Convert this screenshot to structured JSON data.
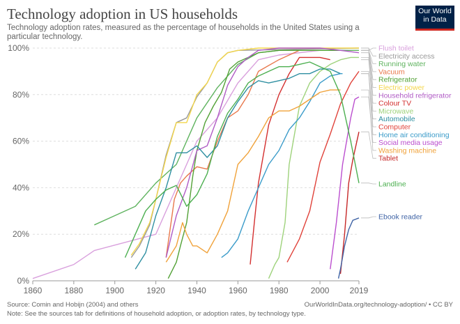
{
  "header": {
    "title": "Technology adoption in US households",
    "subtitle": "Technology adoption rates, measured as the percentage of households in the United States using a particular technology.",
    "logo_line1": "Our World",
    "logo_line2": "in Data"
  },
  "footer": {
    "source": "Source: Comin and Hobijn (2004) and others",
    "note": "Note: See the sources tab for definitions of household adoption, or adoption rates, by technology type.",
    "url": "OurWorldInData.org/technology-adoption/ • CC BY"
  },
  "chart_data": {
    "type": "line",
    "xlim": [
      1860,
      2019
    ],
    "ylim": [
      0,
      100
    ],
    "x_ticks": [
      "1860",
      "1880",
      "1900",
      "1920",
      "1940",
      "1960",
      "1980",
      "2000",
      "2019"
    ],
    "y_ticks": [
      "0%",
      "20%",
      "40%",
      "60%",
      "80%",
      "100%"
    ],
    "grid": true,
    "legend": "right",
    "series": [
      {
        "name": "Flush toilet",
        "color": "#d9a0dd",
        "x": [
          1860,
          1880,
          1890,
          1920,
          1930,
          1940,
          1950,
          1960,
          1970,
          1980,
          2000,
          2019
        ],
        "y": [
          1,
          7,
          13,
          20,
          40,
          60,
          70,
          85,
          95,
          97,
          99,
          99
        ]
      },
      {
        "name": "Electricity access",
        "color": "#999999",
        "x": [
          1908,
          1912,
          1917,
          1920,
          1925,
          1930,
          1935,
          1940,
          1945,
          1950,
          1955,
          1960,
          2019
        ],
        "y": [
          10,
          15,
          24,
          35,
          54,
          68,
          70,
          79,
          85,
          94,
          98,
          99,
          100
        ]
      },
      {
        "name": "Running water",
        "color": "#5fb35f",
        "x": [
          1890,
          1900,
          1910,
          1920,
          1930,
          1940,
          1950,
          1960,
          1970,
          1980,
          1990,
          2000,
          2010,
          2019
        ],
        "y": [
          24,
          28,
          32,
          42,
          50,
          70,
          83,
          93,
          98,
          99,
          99,
          99,
          99,
          99
        ]
      },
      {
        "name": "Vacuum",
        "color": "#e8784c",
        "x": [
          1925,
          1929,
          1932,
          1935,
          1940,
          1945,
          1950,
          1955,
          1960,
          1965,
          1970,
          1980,
          1990
        ],
        "y": [
          10,
          35,
          42,
          45,
          49,
          48,
          60,
          70,
          73,
          80,
          90,
          95,
          99
        ]
      },
      {
        "name": "Refrigerator",
        "color": "#52a136",
        "x": [
          1926,
          1930,
          1932,
          1935,
          1938,
          1940,
          1944,
          1948,
          1952,
          1956,
          1960,
          1965,
          1970,
          1980,
          1990,
          2000,
          2010
        ],
        "y": [
          1,
          8,
          15,
          25,
          45,
          56,
          68,
          75,
          81,
          91,
          94,
          96,
          98,
          99,
          99,
          99,
          99
        ]
      },
      {
        "name": "Electric power",
        "color": "#f3d64a",
        "x": [
          1908,
          1912,
          1917,
          1920,
          1925,
          1930,
          1935,
          1940,
          1945,
          1950,
          1955,
          1960,
          1970,
          2019
        ],
        "y": [
          11,
          16,
          25,
          35,
          53,
          68,
          68,
          80,
          85,
          94,
          98,
          99,
          100,
          100
        ]
      },
      {
        "name": "Household refrigerator",
        "color": "#b05bc5",
        "x": [
          1925,
          1930,
          1935,
          1940,
          1945,
          1950,
          1955,
          1960,
          1965,
          1970,
          1980,
          1990,
          2000,
          2010,
          2019
        ],
        "y": [
          10,
          28,
          40,
          56,
          58,
          70,
          84,
          92,
          96,
          99,
          100,
          100,
          100,
          99,
          98
        ]
      },
      {
        "name": "Colour TV",
        "color": "#d32f2f",
        "x": [
          1966,
          1968,
          1970,
          1975,
          1980,
          1985,
          1990,
          1995,
          2000,
          2005
        ],
        "y": [
          7,
          25,
          42,
          67,
          80,
          89,
          96,
          96,
          96,
          95
        ]
      },
      {
        "name": "Microwave",
        "color": "#9ed27b",
        "x": [
          1975,
          1978,
          1980,
          1983,
          1985,
          1990,
          1995,
          2000,
          2005,
          2010,
          2015,
          2019
        ],
        "y": [
          1,
          7,
          10,
          25,
          50,
          75,
          85,
          90,
          93,
          95,
          96,
          96
        ]
      },
      {
        "name": "Automobile",
        "color": "#2e8fa1",
        "x": [
          1910,
          1915,
          1920,
          1925,
          1930,
          1935,
          1940,
          1945,
          1950,
          1955,
          1960,
          1965,
          1970,
          1975,
          1980,
          1985,
          1990,
          1995,
          2000,
          2005,
          2010
        ],
        "y": [
          5,
          12,
          28,
          40,
          55,
          55,
          58,
          53,
          58,
          70,
          77,
          83,
          86,
          85,
          86,
          87,
          89,
          89,
          91,
          91,
          89
        ]
      },
      {
        "name": "Computer",
        "color": "#e0423a",
        "x": [
          1984,
          1990,
          1995,
          2000,
          2005,
          2010,
          2015,
          2019
        ],
        "y": [
          8,
          18,
          30,
          51,
          63,
          76,
          85,
          90
        ]
      },
      {
        "name": "Home air conditioning",
        "color": "#3a9bc9",
        "x": [
          1952,
          1955,
          1960,
          1965,
          1970,
          1975,
          1980,
          1985,
          1990,
          1995,
          2000,
          2005,
          2010,
          2011
        ],
        "y": [
          10,
          12,
          18,
          30,
          40,
          50,
          56,
          65,
          70,
          77,
          85,
          88,
          89,
          89
        ]
      },
      {
        "name": "Social media usage",
        "color": "#bb4fcf",
        "x": [
          2005,
          2008,
          2011,
          2013,
          2015,
          2017,
          2019
        ],
        "y": [
          5,
          25,
          50,
          60,
          70,
          78,
          79
        ]
      },
      {
        "name": "Washing machine",
        "color": "#f0a23a",
        "x": [
          1925,
          1930,
          1933,
          1935,
          1938,
          1940,
          1945,
          1950,
          1955,
          1960,
          1965,
          1970,
          1975,
          1980,
          1985,
          1990,
          1995,
          2000,
          2005,
          2010
        ],
        "y": [
          8,
          15,
          25,
          20,
          15,
          15,
          12,
          20,
          30,
          50,
          55,
          62,
          70,
          73,
          73,
          75,
          78,
          81,
          82,
          82
        ]
      },
      {
        "name": "Tablet",
        "color": "#c62828",
        "x": [
          2010,
          2012,
          2014,
          2016,
          2019
        ],
        "y": [
          3,
          20,
          42,
          52,
          64
        ]
      },
      {
        "name": "Landline",
        "color": "#4caf50",
        "x": [
          1905,
          1910,
          1915,
          1920,
          1925,
          1930,
          1935,
          1940,
          1945,
          1950,
          1955,
          1960,
          1965,
          1970,
          1975,
          1980,
          1985,
          1990,
          1995,
          2000,
          2005,
          2010,
          2015,
          2019
        ],
        "y": [
          10,
          20,
          30,
          35,
          39,
          41,
          32,
          37,
          46,
          62,
          72,
          78,
          85,
          88,
          90,
          92,
          92,
          93,
          94,
          92,
          90,
          80,
          60,
          42
        ]
      },
      {
        "name": "Ebook reader",
        "color": "#3f63a5",
        "x": [
          2009,
          2010,
          2012,
          2014,
          2016,
          2019
        ],
        "y": [
          1,
          5,
          15,
          22,
          26,
          27
        ]
      }
    ]
  }
}
